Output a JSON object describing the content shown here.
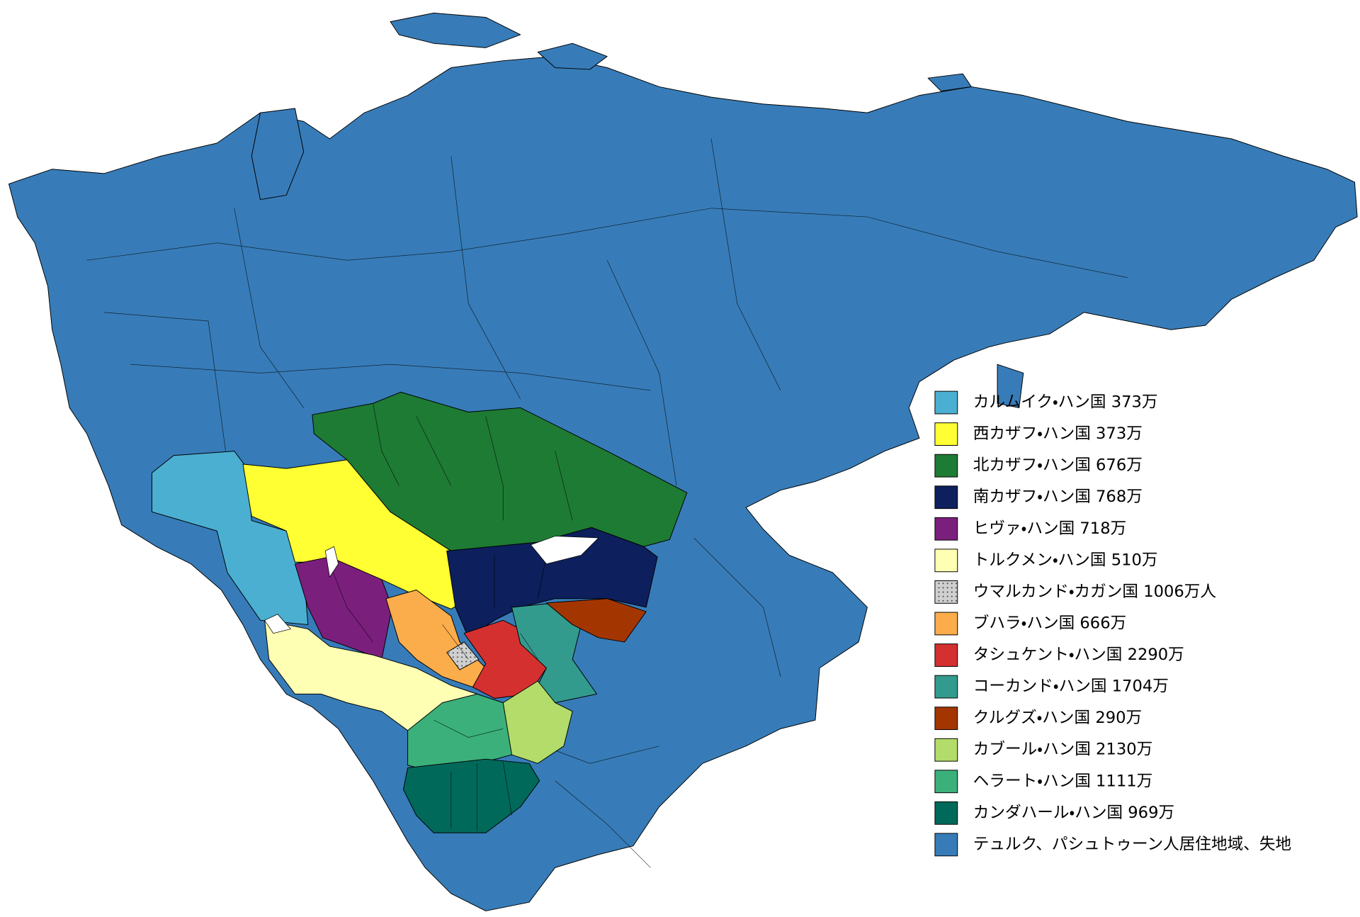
{
  "legend": {
    "items": [
      {
        "label": "カルムイク・ハン国 373万",
        "color": "#4bafd2"
      },
      {
        "label": "西カザフ・ハン国 373万",
        "color": "#ffff33"
      },
      {
        "label": "北カザフ・ハン国 676万",
        "color": "#1e7b34"
      },
      {
        "label": "南カザフ・ハン国 768万",
        "color": "#0d1f5c"
      },
      {
        "label": "ヒヴァ・ハン国 718万",
        "color": "#7b1f7d"
      },
      {
        "label": "トルクメン・ハン国 510万",
        "color": "#ffffb3"
      },
      {
        "label": "ウマルカンド・カガン国 1006万人",
        "color": "#d0d0d0",
        "pattern": "dots"
      },
      {
        "label": "ブハラ・ハン国 666万",
        "color": "#fbad4b"
      },
      {
        "label": "タシュケント・ハン国 2290万",
        "color": "#d43030"
      },
      {
        "label": "コーカンド・ハン国 1704万",
        "color": "#339b8e"
      },
      {
        "label": "クルグズ・ハン国 290万",
        "color": "#a33600"
      },
      {
        "label": "カブール・ハン国 2130万",
        "color": "#b3dc6a"
      },
      {
        "label": "ヘラート・ハン国 1111万",
        "color": "#3bb07b"
      },
      {
        "label": "カンダハール・ハン国 969万",
        "color": "#00695a"
      },
      {
        "label": "テュルク、パシュトゥーン人居住地域、失地",
        "color": "#377cb8"
      }
    ]
  }
}
